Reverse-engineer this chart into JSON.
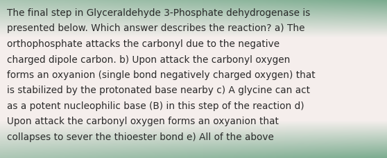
{
  "text_lines": [
    "The final step in Glyceraldehyde 3-Phosphate dehydrogenase is",
    "presented below. Which answer describes the reaction? a) The",
    "orthophosphate attacks the carbonyl due to the negative",
    "charged dipole carbon. b) Upon attack the carbonyl oxygen",
    "forms an oxyanion (single bond negatively charged oxygen) that",
    "is stabilized by the protonated base nearby c) A glycine can act",
    "as a potent nucleophilic base (B) in this step of the reaction d)",
    "Upon attack the carbonyl oxygen forms an oxyanion that",
    "collapses to sever the thioester bond e) All of the above"
  ],
  "bg_color_center": "#f5eeed",
  "stripe_color": "#7aab8e",
  "text_color": "#2a2a2a",
  "font_size": 9.8,
  "fig_width": 5.58,
  "fig_height": 2.3,
  "dpi": 100
}
